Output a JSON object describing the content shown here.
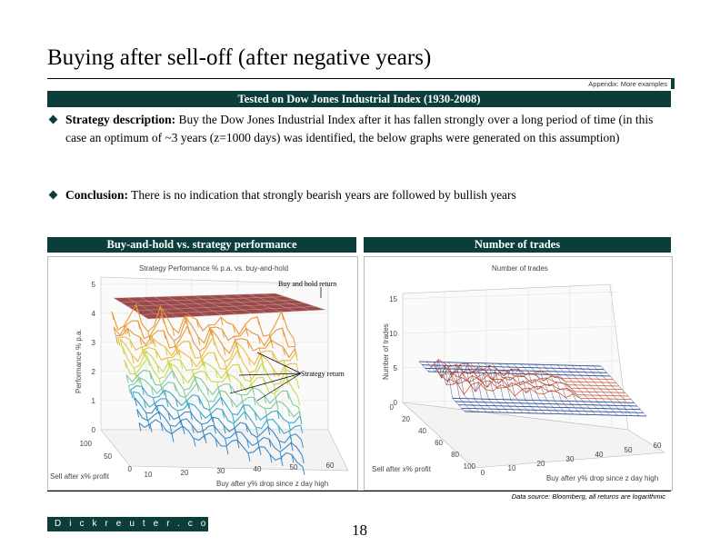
{
  "page": {
    "title": "Buying after sell-off (after negative years)",
    "appendix": "Appendix: More examples",
    "band_title": "Tested on Dow Jones Industrial Index (1930-2008)",
    "bullets": [
      {
        "bold": "Strategy description:",
        "text": " Buy the Dow Jones Industrial Index after it has fallen strongly over a long period of time (in this case an optimum of ~3 years (z=1000 days) was identified, the below graphs were generated on this assumption)"
      },
      {
        "bold": "Conclusion:",
        "text": " There is no indication that strongly bearish years are followed by bullish years"
      }
    ],
    "left_panel_title": "Buy-and-hold vs. strategy performance",
    "right_panel_title": "Number of trades",
    "source": "Data source: Bloomberg, all returns are logarithmic",
    "logo": "Dickreuter.com",
    "page_number": "18"
  },
  "left_chart": {
    "title": "Strategy Performance % p.a. vs. buy-and-hold",
    "z_label": "Performance % p.a.",
    "x_label": "Sell after x% profit",
    "y_label": "Buy after y% drop since z day high",
    "z_ticks": [
      "0",
      "1",
      "2",
      "3",
      "4",
      "5"
    ],
    "x_ticks": [
      "100",
      "50",
      "0"
    ],
    "y_ticks": [
      "10",
      "20",
      "30",
      "40",
      "50",
      "60"
    ],
    "annotation_buyhold": "Buy and hold return",
    "annotation_strategy": "Strategy return",
    "colors": {
      "buyhold": "#7a1a1a",
      "strategy_high": "#e89a3a",
      "strategy_mid": "#c8d84a",
      "strategy_low": "#3aa8c8"
    }
  },
  "right_chart": {
    "title": "Number of trades",
    "z_label": "Number of trades",
    "x_label": "Sell after x% profit",
    "y_label": "Buy after y% drop since z day high",
    "z_ticks": [
      "0",
      "5",
      "10",
      "15"
    ],
    "x_ticks": [
      "0",
      "20",
      "40",
      "60",
      "80",
      "100"
    ],
    "y_ticks": [
      "0",
      "10",
      "20",
      "30",
      "40",
      "50",
      "60"
    ],
    "colors": {
      "mesh": "#1a3a8a",
      "peak": "#e85a2a",
      "mid": "#c8d84a"
    }
  }
}
